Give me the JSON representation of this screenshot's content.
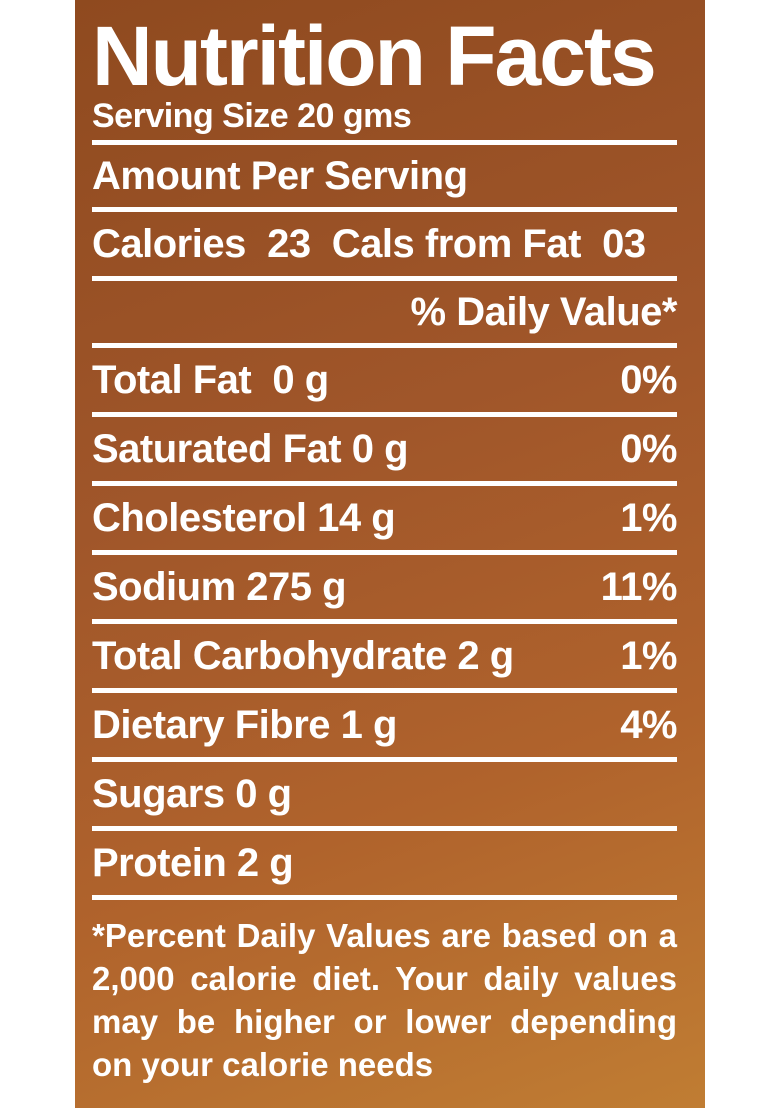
{
  "label": {
    "title": "Nutrition Facts",
    "serving_size": "Serving Size 20 gms",
    "amount_per_serving": "Amount Per Serving",
    "calories_line": "Calories  23  Cals from Fat  03",
    "daily_value_header": "% Daily Value*",
    "nutrients": [
      {
        "name": "Total Fat  0 g",
        "dv": "0%"
      },
      {
        "name": "Saturated Fat 0 g",
        "dv": "0%"
      },
      {
        "name": "Cholesterol 14 g",
        "dv": "1%"
      },
      {
        "name": "Sodium 275 g",
        "dv": "11%"
      },
      {
        "name": "Total Carbohydrate 2 g",
        "dv": "1%"
      },
      {
        "name": "Dietary Fibre 1 g",
        "dv": "4%"
      },
      {
        "name": "Sugars 0 g",
        "dv": ""
      },
      {
        "name": "Protein 2 g",
        "dv": ""
      }
    ],
    "footnote": "*Percent Daily Values are based on a 2,000 calorie diet. Your daily values may be higher or lower depending on your calorie needs"
  }
}
